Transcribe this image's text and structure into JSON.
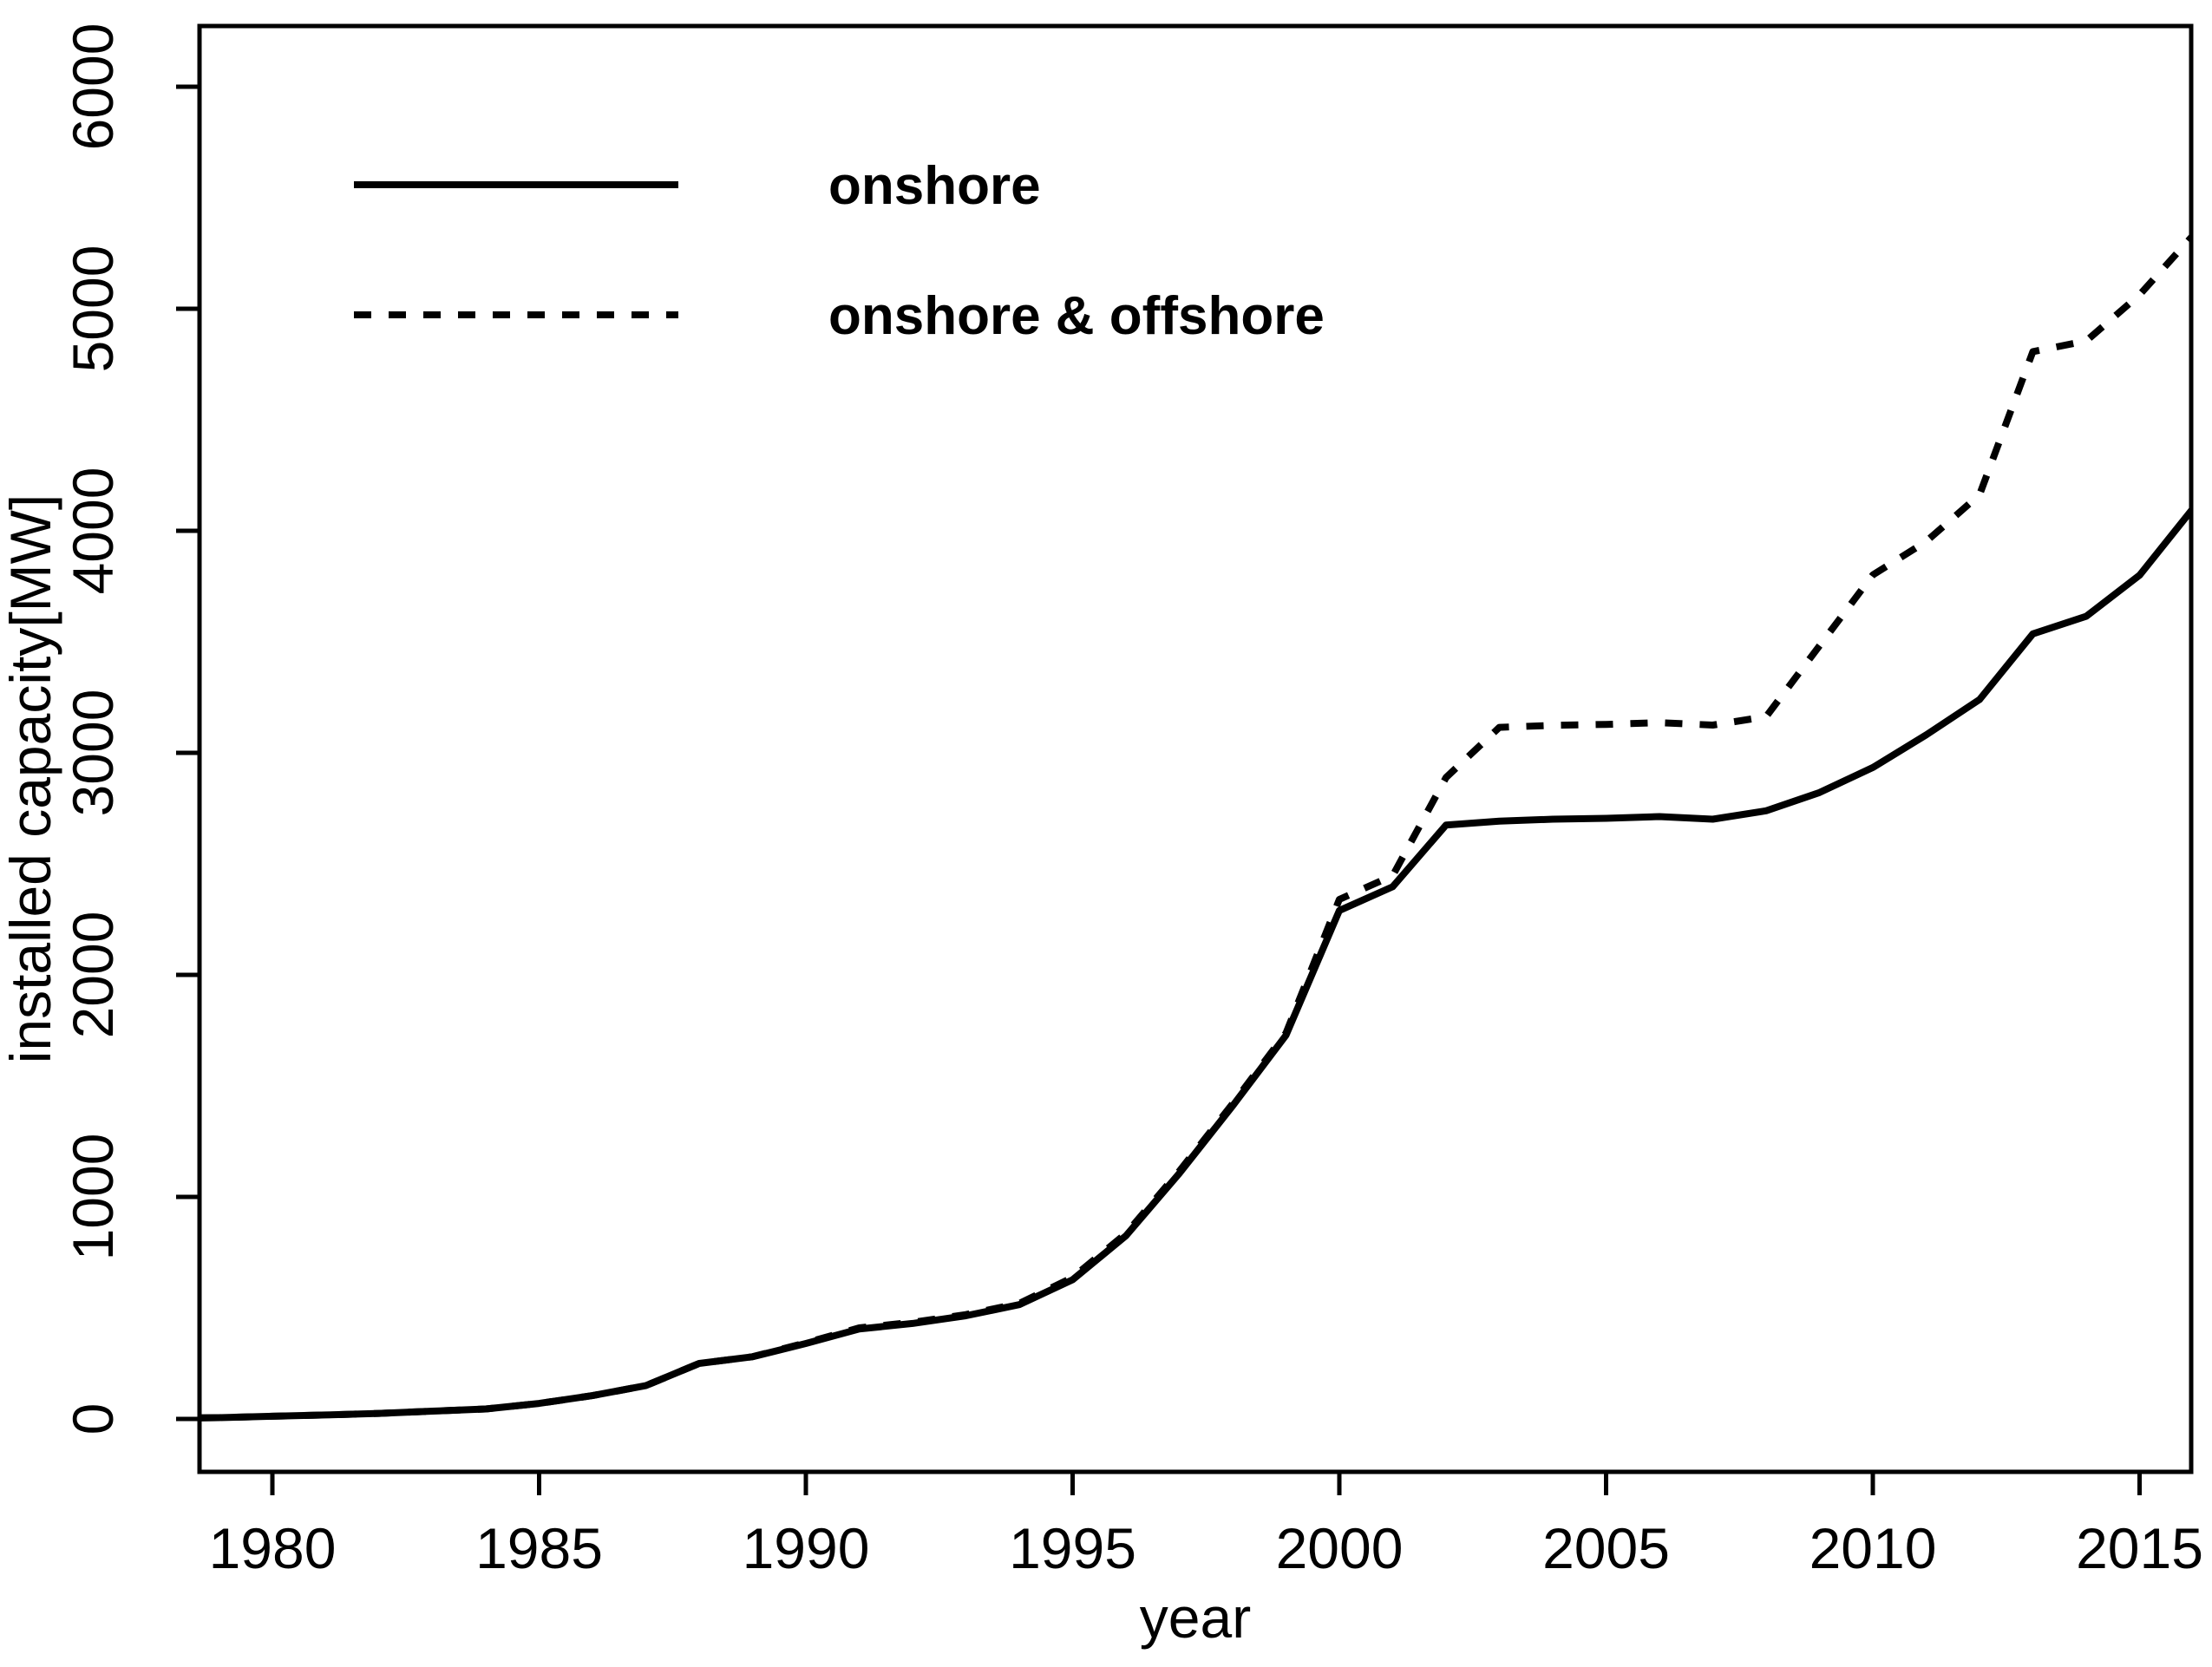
{
  "figure": {
    "background_color": "#ffffff",
    "foreground_color": "#000000"
  },
  "chart_data": {
    "type": "line",
    "title": "",
    "xlabel": "year",
    "ylabel": "installed capacity[MW]",
    "x_ticks": [
      "1980",
      "1985",
      "1990",
      "1995",
      "2000",
      "2005",
      "2010",
      "2015"
    ],
    "x_tick_years": [
      1980,
      1985,
      1990,
      1995,
      2000,
      2005,
      2010,
      2015
    ],
    "y_ticks": [
      "0",
      "1000",
      "2000",
      "3000",
      "4000",
      "5000",
      "6000"
    ],
    "y_tick_values": [
      0,
      1000,
      2000,
      3000,
      4000,
      5000,
      6000
    ],
    "xlim": [
      1978.6,
      2015.95
    ],
    "ylim": [
      -230,
      6270
    ],
    "grid": false,
    "legend_position": "top-left-inside",
    "x": [
      1978,
      1979,
      1980,
      1981,
      1982,
      1983,
      1984,
      1985,
      1986,
      1987,
      1988,
      1989,
      1990,
      1991,
      1992,
      1993,
      1994,
      1995,
      1996,
      1997,
      1998,
      1999,
      2000,
      2001,
      2002,
      2003,
      2004,
      2005,
      2006,
      2007,
      2008,
      2009,
      2010,
      2011,
      2012,
      2013,
      2014,
      2015,
      2016
    ],
    "series": [
      {
        "name": "onshore",
        "style": "solid",
        "values": [
          3,
          6,
          12,
          18,
          25,
          35,
          45,
          70,
          105,
          150,
          250,
          280,
          340,
          405,
          430,
          465,
          515,
          627,
          825,
          1106,
          1410,
          1728,
          2290,
          2397,
          2675,
          2692,
          2701,
          2705,
          2713,
          2701,
          2739,
          2821,
          2934,
          3081,
          3240,
          3536,
          3615,
          3800,
          4100
        ]
      },
      {
        "name": "onshore & offshore",
        "style": "dashed",
        "values": [
          3,
          6,
          12,
          18,
          25,
          35,
          45,
          70,
          105,
          150,
          250,
          280,
          343,
          410,
          435,
          470,
          520,
          637,
          835,
          1116,
          1420,
          1738,
          2340,
          2447,
          2889,
          3115,
          3124,
          3128,
          3136,
          3125,
          3163,
          3482,
          3801,
          3952,
          4162,
          4807,
          4855,
          5063,
          5330
        ]
      }
    ]
  }
}
